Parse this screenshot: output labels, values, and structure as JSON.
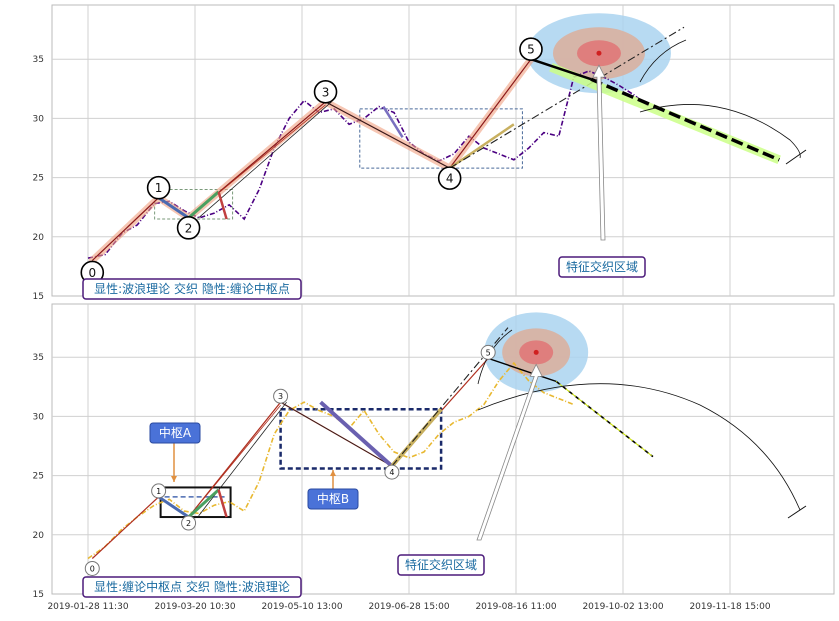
{
  "chart_data": [
    {
      "type": "line",
      "panel": "top",
      "title": "",
      "xlabel": "",
      "ylabel": "",
      "ylim": [
        15,
        39
      ],
      "y_ticks": [
        15,
        20,
        25,
        30,
        35
      ],
      "grid": true,
      "legend": "none",
      "series": [
        {
          "color": "#4b0082",
          "style": "dash-dot",
          "x": [
            "2019-01-28",
            "2019-02-05",
            "2019-02-13",
            "2019-02-20",
            "2019-02-28",
            "2019-03-07",
            "2019-03-14",
            "2019-03-21",
            "2019-03-28",
            "2019-04-04",
            "2019-04-11",
            "2019-04-18",
            "2019-04-25",
            "2019-05-02",
            "2019-05-09",
            "2019-05-16",
            "2019-05-23",
            "2019-05-30",
            "2019-06-06",
            "2019-06-13",
            "2019-06-20",
            "2019-06-27",
            "2019-07-04",
            "2019-07-11",
            "2019-07-18",
            "2019-07-25",
            "2019-08-01",
            "2019-08-08",
            "2019-08-15",
            "2019-08-22",
            "2019-08-29",
            "2019-09-05",
            "2019-09-12",
            "2019-09-19",
            "2019-09-26",
            "2019-10-03",
            "2019-10-10",
            "2019-10-17"
          ],
          "y": [
            18.2,
            18.5,
            20.3,
            21.0,
            22.8,
            23.0,
            22.2,
            21.6,
            22.0,
            22.7,
            21.5,
            24.0,
            27.5,
            30.0,
            31.5,
            30.5,
            30.8,
            29.5,
            30.0,
            31.0,
            30.5,
            28.0,
            27.0,
            26.4,
            27.0,
            28.5,
            27.5,
            27.0,
            26.5,
            27.5,
            28.8,
            28.5,
            33.5,
            34.0,
            33.5,
            32.8,
            32.0,
            31.0
          ]
        }
      ],
      "waves": {
        "points": [
          {
            "label": "0",
            "x": "2019-01-30",
            "y": 18.0
          },
          {
            "label": "1",
            "x": "2019-03-02",
            "y": 23.3
          },
          {
            "label": "2",
            "x": "2019-03-16",
            "y": 21.6
          },
          {
            "label": "3",
            "x": "2019-05-19",
            "y": 31.4
          },
          {
            "label": "4",
            "x": "2019-07-16",
            "y": 25.8
          },
          {
            "label": "5",
            "x": "2019-08-23",
            "y": 35.0
          }
        ]
      },
      "forecast_line": {
        "x": [
          "2019-08-23",
          "2019-12-17"
        ],
        "y": [
          35.0,
          26.5
        ]
      },
      "annotation": "显性:波浪理论 交织 隐性:缠论中枢点",
      "callout": "特征交织区域"
    },
    {
      "type": "line",
      "panel": "bottom",
      "title": "",
      "xlabel": "",
      "ylabel": "",
      "ylim": [
        15,
        39
      ],
      "y_ticks": [
        15,
        20,
        25,
        30,
        35
      ],
      "grid": true,
      "legend": "none",
      "x_ticks": [
        "2019-01-28 11:30",
        "2019-03-20 10:30",
        "2019-05-10 13:00",
        "2019-06-28 15:00",
        "2019-08-16 11:00",
        "2019-10-02 13:00",
        "2019-11-18 15:00"
      ],
      "series": [
        {
          "color": "#e8b830",
          "style": "dash-dot",
          "x": [
            "2019-01-28",
            "2019-02-05",
            "2019-02-13",
            "2019-02-20",
            "2019-02-28",
            "2019-03-07",
            "2019-03-14",
            "2019-03-21",
            "2019-03-28",
            "2019-04-04",
            "2019-04-11",
            "2019-04-18",
            "2019-04-25",
            "2019-05-02",
            "2019-05-09",
            "2019-05-16",
            "2019-05-23",
            "2019-05-30",
            "2019-06-06",
            "2019-06-13",
            "2019-06-20",
            "2019-06-27",
            "2019-07-04",
            "2019-07-11",
            "2019-07-18",
            "2019-07-25",
            "2019-08-01",
            "2019-08-08",
            "2019-08-15",
            "2019-08-22",
            "2019-08-29",
            "2019-09-05",
            "2019-09-12"
          ],
          "y": [
            18.0,
            19.0,
            20.5,
            21.5,
            22.5,
            23.0,
            22.0,
            21.8,
            22.5,
            22.8,
            22.0,
            24.5,
            28.5,
            30.5,
            31.2,
            30.5,
            30.0,
            29.0,
            30.5,
            28.5,
            27.0,
            26.5,
            27.0,
            28.5,
            29.5,
            30.0,
            31.0,
            33.0,
            34.5,
            33.0,
            32.0,
            31.5,
            31.0
          ]
        }
      ],
      "waves": {
        "points": [
          {
            "label": "0",
            "x": "2019-01-30",
            "y": 18.0
          },
          {
            "label": "1",
            "x": "2019-03-02",
            "y": 23.2
          },
          {
            "label": "2",
            "x": "2019-03-16",
            "y": 21.5
          },
          {
            "label": "3",
            "x": "2019-04-28",
            "y": 31.2
          },
          {
            "label": "4",
            "x": "2019-06-19",
            "y": 25.8
          },
          {
            "label": "5",
            "x": "2019-08-03",
            "y": 34.9
          }
        ]
      },
      "forecast_line": {
        "x": [
          "2019-08-03",
          "2019-10-19"
        ],
        "y": [
          34.9,
          26.6
        ]
      },
      "annotation": "显性:缠论中枢点 交织 隐性:波浪理论",
      "callout": "特征交织区域",
      "labels": [
        "中枢A",
        "中枢B"
      ]
    }
  ]
}
